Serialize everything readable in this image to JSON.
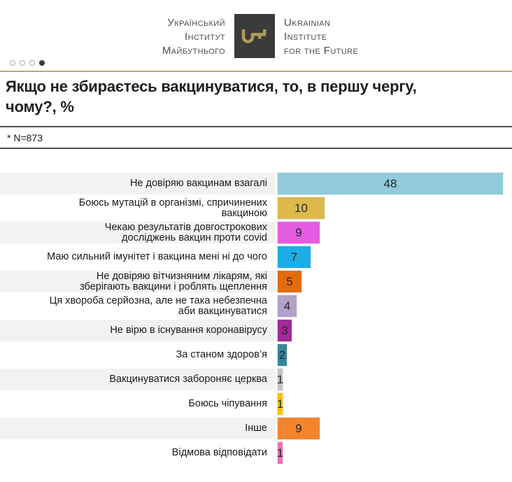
{
  "logo": {
    "ukrainian_name": "Український\nІнститут\nМайбутнього",
    "english_name": "Ukrainian\nInstitute\nfor the Future",
    "box_color": "#3B3B3B",
    "key_color": "#B29A5B"
  },
  "slide_nav": {
    "dot_count": 4,
    "active_dot_index": 3
  },
  "header": {
    "title": "Якщо не збираєтесь вакцинуватися, то, в першу чергу,\nчому?, %",
    "sample_note": "* N=873"
  },
  "accent_colors": {
    "gold_rule": "#B5A87E",
    "separator": "#4F4F4F",
    "stripe_gray": "#F2F2F2"
  },
  "chart_data": {
    "type": "bar",
    "orientation": "horizontal",
    "title": "Якщо не збираєтесь вакцинуватися, то, в першу чергу, чому?, %",
    "unit": "%",
    "xlim": [
      0,
      48
    ],
    "grid": false,
    "legend": false,
    "value_label_position": "inside-center",
    "categories": [
      "Не довіряю вакцинам взагалі",
      "Боюсь мутацій в організмі, спричинених\nвакциною",
      "Чекаю результатів довгострокових\nдосліджень вакцин проти covid",
      "Маю сильний імунітет і вакцина мені ні до чого",
      "Не довіряю вітчизняним лікарям, які\nзберігають вакцини і роблять щеплення",
      "Ця хвороба серйозна, але не така небезпечна\nаби вакцинуватися",
      "Не вірю в існування коронавірусу",
      "За станом здоров’я",
      "Вакцинуватися забороняє церква",
      "Боюсь чіпування",
      "Інше",
      "Відмова відповідати"
    ],
    "values": [
      48,
      10,
      9,
      7,
      5,
      4,
      3,
      2,
      1,
      1,
      9,
      1
    ],
    "bar_colors": [
      "#92CBDC",
      "#DDB94C",
      "#E55CE0",
      "#1CADE4",
      "#E36C0A",
      "#B3A2C7",
      "#9E2B96",
      "#35879C",
      "#C4C4C4",
      "#FFC000",
      "#F5852C",
      "#EF6FB7"
    ],
    "row_stripe_pattern": [
      "#F2F2F2",
      "#FFFFFF"
    ]
  }
}
